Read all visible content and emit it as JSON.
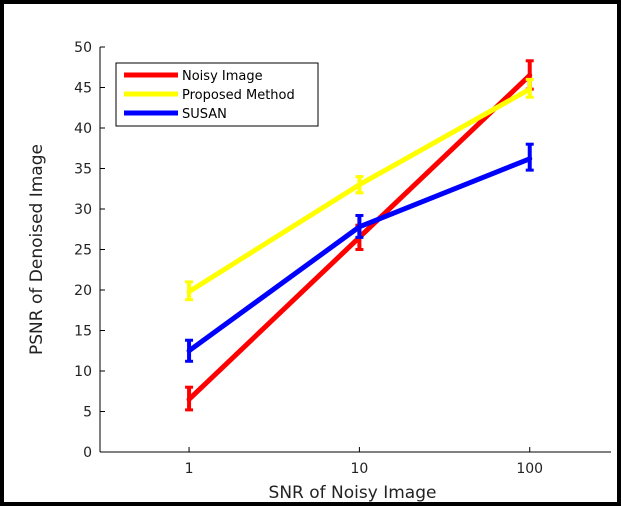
{
  "chart_data": {
    "type": "line",
    "title": "",
    "xlabel": "SNR of Noisy Image",
    "ylabel": "PSNR of Denoised Image",
    "x_scale": "log",
    "x_ticks": [
      1,
      10,
      100
    ],
    "x_tick_labels": [
      "1",
      "10",
      "100"
    ],
    "xlim": [
      0.3,
      300
    ],
    "y_ticks": [
      0,
      5,
      10,
      15,
      20,
      25,
      30,
      35,
      40,
      45,
      50
    ],
    "y_tick_labels": [
      "0",
      "5",
      "10",
      "15",
      "20",
      "25",
      "30",
      "35",
      "40",
      "45",
      "50"
    ],
    "ylim": [
      0,
      50
    ],
    "grid": false,
    "legend_position": "top-left",
    "x": [
      1,
      10,
      100
    ],
    "series": [
      {
        "name": "Noisy Image",
        "color": "#ff0000",
        "values": [
          6.5,
          26.5,
          46.5
        ],
        "err_low": [
          5.2,
          25.0,
          44.8
        ],
        "err_high": [
          8.0,
          28.0,
          48.3
        ]
      },
      {
        "name": "Proposed Method",
        "color": "#ffff00",
        "values": [
          19.8,
          33.0,
          44.8
        ],
        "err_low": [
          18.8,
          32.0,
          43.8
        ],
        "err_high": [
          21.0,
          34.0,
          46.0
        ]
      },
      {
        "name": "SUSAN",
        "color": "#0000ff",
        "values": [
          12.5,
          27.8,
          36.2
        ],
        "err_low": [
          11.2,
          26.5,
          34.8
        ],
        "err_high": [
          13.8,
          29.2,
          38.0
        ]
      }
    ]
  }
}
